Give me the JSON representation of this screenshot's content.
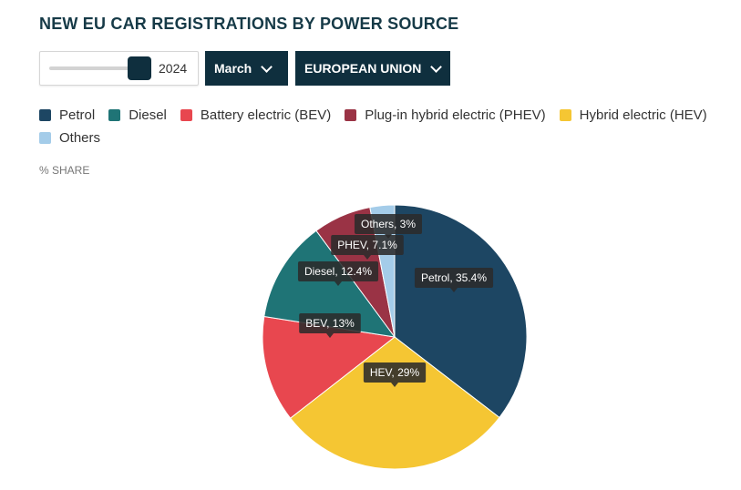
{
  "header": {
    "title": "NEW EU CAR REGISTRATIONS BY POWER SOURCE"
  },
  "controls": {
    "year_value": "2024",
    "year_slider_level": 1.0,
    "month_label": "March",
    "region_label": "EUROPEAN UNION"
  },
  "colors": {
    "control_bg": "#0f2f3e",
    "petrol": "#1d4663",
    "diesel": "#1f7476",
    "bev": "#e8474f",
    "phev": "#9a3345",
    "hev": "#f5c633",
    "others": "#a4cce9"
  },
  "legend": [
    {
      "label": "Petrol",
      "color": "#1d4663"
    },
    {
      "label": "Diesel",
      "color": "#1f7476"
    },
    {
      "label": "Battery electric (BEV)",
      "color": "#e8474f"
    },
    {
      "label": "Plug-in hybrid electric (PHEV)",
      "color": "#9a3345"
    },
    {
      "label": "Hybrid electric (HEV)",
      "color": "#f5c633"
    },
    {
      "label": "Others",
      "color": "#a4cce9"
    }
  ],
  "unit_label": "% SHARE",
  "chart_data": {
    "type": "pie",
    "title": "NEW EU CAR REGISTRATIONS BY POWER SOURCE",
    "unit": "% SHARE",
    "slices": [
      {
        "name": "Petrol",
        "value": 35.4,
        "label": "Petrol, 35.4%",
        "color": "#1d4663"
      },
      {
        "name": "HEV",
        "value": 29,
        "label": "HEV, 29%",
        "color": "#f5c633"
      },
      {
        "name": "BEV",
        "value": 13,
        "label": "BEV, 13%",
        "color": "#e8474f"
      },
      {
        "name": "Diesel",
        "value": 12.4,
        "label": "Diesel, 12.4%",
        "color": "#1f7476"
      },
      {
        "name": "PHEV",
        "value": 7.1,
        "label": "PHEV, 7.1%",
        "color": "#9a3345"
      },
      {
        "name": "Others",
        "value": 3,
        "label": "Others, 3%",
        "color": "#a4cce9"
      }
    ],
    "legend_position": "top"
  }
}
